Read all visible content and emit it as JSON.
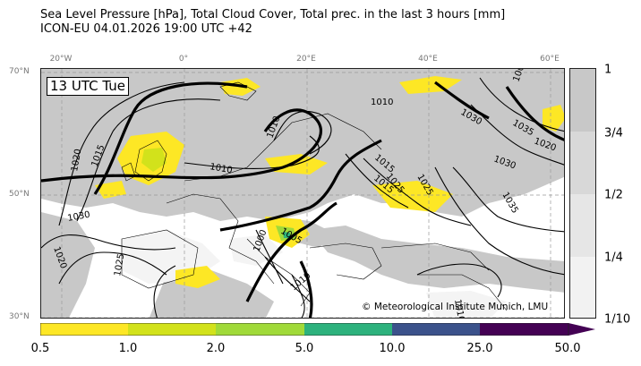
{
  "title": {
    "line1": "Sea Level Pressure [hPa], Total Cloud Cover, Total prec. in the last 3 hours [mm]",
    "line2": "ICON-EU 04.01.2026 19:00 UTC +42"
  },
  "map": {
    "time_label": "13 UTC Tue",
    "credit": "© Meteorological Institute Munich, LMU",
    "lon_ticks": [
      "20°W",
      "0°",
      "20°E",
      "40°E",
      "60°E"
    ],
    "lat_ticks": [
      "70°N",
      "50°N",
      "30°N"
    ],
    "isobar_labels": [
      "1015",
      "1020",
      "1010",
      "1010",
      "1030",
      "1035",
      "1025",
      "1030",
      "1020",
      "1015",
      "1025",
      "1030",
      "1035",
      "1020",
      "1015",
      "1010",
      "1005",
      "1000",
      "1005",
      "1010",
      "1025",
      "1010"
    ],
    "colors": {
      "cloud": "#c8c8c8",
      "land_clear": "#ffffff",
      "isobar": "#000000"
    }
  },
  "cloud_colorbar": {
    "ticks": [
      "1",
      "3/4",
      "1/2",
      "1/4",
      "1/10"
    ],
    "colors": [
      "#c8c8c8",
      "#d8d8d8",
      "#e6e6e6",
      "#f2f2f2"
    ]
  },
  "precip_colorbar": {
    "ticks": [
      "0.5",
      "1.0",
      "2.0",
      "5.0",
      "10.0",
      "25.0",
      "50.0"
    ],
    "colors": [
      "#fde725",
      "#d2e21b",
      "#a0da39",
      "#2db27d",
      "#3b528b",
      "#440154"
    ]
  }
}
